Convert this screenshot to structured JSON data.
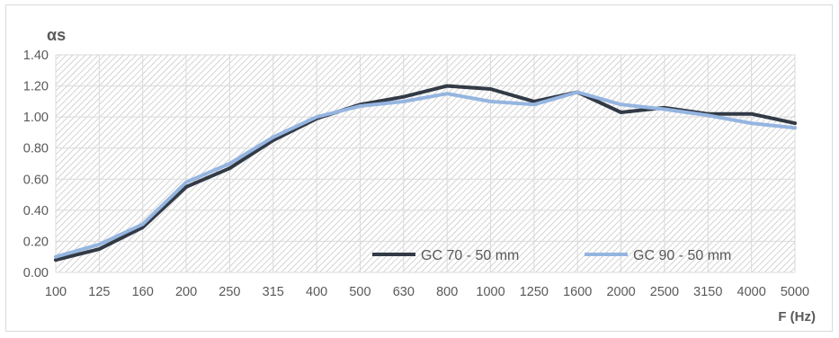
{
  "chart_data": {
    "type": "line",
    "title": "",
    "ylabel": "αs",
    "xlabel": "F (Hz)",
    "ylim": [
      0,
      1.4
    ],
    "yticks": [
      "0.00",
      "0.20",
      "0.40",
      "0.60",
      "0.80",
      "1.00",
      "1.20",
      "1.40"
    ],
    "categories": [
      "100",
      "125",
      "160",
      "200",
      "250",
      "315",
      "400",
      "500",
      "630",
      "800",
      "1000",
      "1250",
      "1600",
      "2000",
      "2500",
      "3150",
      "4000",
      "5000"
    ],
    "grid": true,
    "legend_position": "bottom-right",
    "series": [
      {
        "name": "GC 70 - 50 mm",
        "color": "#323a46",
        "values": [
          0.08,
          0.15,
          0.29,
          0.55,
          0.67,
          0.85,
          0.99,
          1.08,
          1.13,
          1.2,
          1.18,
          1.1,
          1.16,
          1.03,
          1.06,
          1.02,
          1.02,
          0.96
        ]
      },
      {
        "name": "GC 90 - 50 mm",
        "color": "#95b5e0",
        "values": [
          0.1,
          0.18,
          0.31,
          0.58,
          0.7,
          0.87,
          1.0,
          1.07,
          1.1,
          1.15,
          1.1,
          1.08,
          1.16,
          1.08,
          1.05,
          1.01,
          0.96,
          0.93
        ]
      }
    ]
  }
}
